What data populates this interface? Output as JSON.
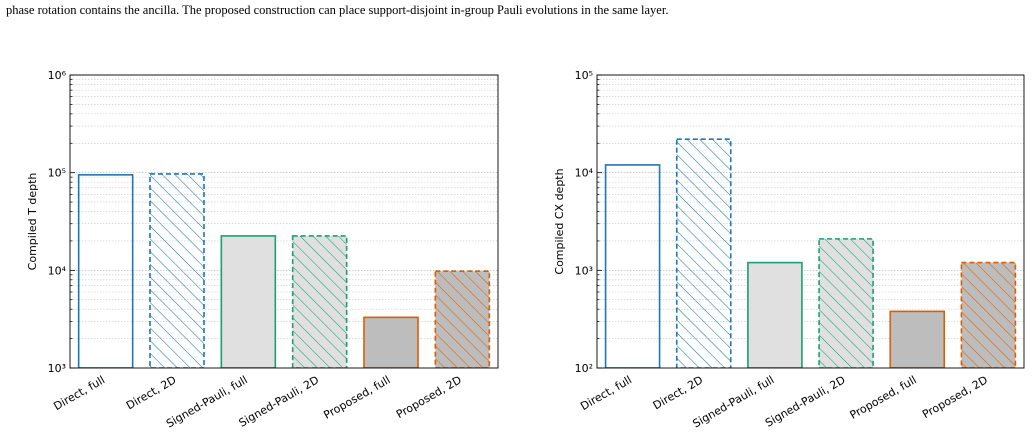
{
  "caption_fragment": "phase rotation contains the ancilla. The proposed construction can place support-disjoint in-group Pauli evolutions in the same layer.",
  "chart_data": [
    {
      "type": "bar",
      "ylabel": "Compiled T depth",
      "log_scale": true,
      "grid": true,
      "categories": [
        "Direct, full",
        "Direct, 2D",
        "Signed-Pauli, full",
        "Signed-Pauli, 2D",
        "Proposed, full",
        "Proposed, 2D"
      ],
      "values": [
        95000,
        97000,
        22500,
        22500,
        3300,
        9800
      ],
      "colors": [
        "#1f77b4",
        "#1f77b4",
        "#1b9e77",
        "#1b9e77",
        "#d95f02",
        "#d95f02"
      ],
      "fills": [
        "none",
        "none",
        "#e0e0e0",
        "#e0e0e0",
        "#bdbdbd",
        "#bdbdbd"
      ],
      "hatched": [
        false,
        true,
        false,
        true,
        false,
        true
      ],
      "ylim": [
        1000,
        1000000
      ],
      "yticks": [
        {
          "value": 1000,
          "label": "10³"
        },
        {
          "value": 10000,
          "label": "10⁴"
        },
        {
          "value": 100000,
          "label": "10⁵"
        },
        {
          "value": 1000000,
          "label": "10⁶"
        }
      ]
    },
    {
      "type": "bar",
      "ylabel": "Compiled CX depth",
      "log_scale": true,
      "grid": true,
      "categories": [
        "Direct, full",
        "Direct, 2D",
        "Signed-Pauli, full",
        "Signed-Pauli, 2D",
        "Proposed, full",
        "Proposed, 2D"
      ],
      "values": [
        12000,
        22000,
        1200,
        2100,
        380,
        1200
      ],
      "colors": [
        "#1f77b4",
        "#1f77b4",
        "#1b9e77",
        "#1b9e77",
        "#d95f02",
        "#d95f02"
      ],
      "fills": [
        "none",
        "none",
        "#e0e0e0",
        "#e0e0e0",
        "#bdbdbd",
        "#bdbdbd"
      ],
      "hatched": [
        false,
        true,
        false,
        true,
        false,
        true
      ],
      "ylim": [
        100,
        100000
      ],
      "yticks": [
        {
          "value": 100,
          "label": "10²"
        },
        {
          "value": 1000,
          "label": "10³"
        },
        {
          "value": 10000,
          "label": "10⁴"
        },
        {
          "value": 100000,
          "label": "10⁵"
        }
      ]
    }
  ]
}
